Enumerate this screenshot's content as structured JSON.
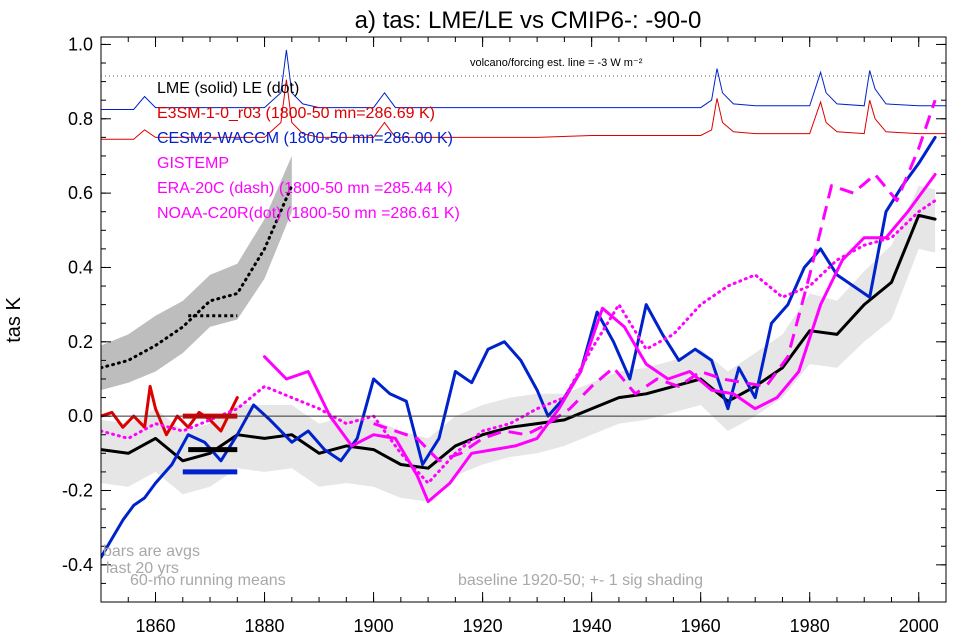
{
  "chart_data": {
    "type": "line",
    "title": "a) tas: LME/LE vs CMIP6-: -90-0",
    "ylabel": "tas K",
    "xlim": [
      1850,
      2005
    ],
    "ylim": [
      -0.5,
      1.02
    ],
    "x_ticks": [
      1860,
      1880,
      1900,
      1920,
      1940,
      1960,
      1980,
      2000
    ],
    "y_ticks": [
      -0.4,
      -0.2,
      0.0,
      0.2,
      0.4,
      0.6,
      0.8,
      1.0
    ],
    "y_tick_labels": [
      "-0.4",
      "-0.2",
      "0.0",
      "0.2",
      "0.4",
      "0.6",
      "0.8",
      "1.0"
    ],
    "zero_line": 0.0,
    "dotted_reference_y": 0.915,
    "dotted_reference_label": "volcano/forcing est.     line = -3 W m⁻²",
    "legend": {
      "placement": "top-left",
      "entries": [
        {
          "text": "LME (solid)   LE (dot)",
          "color": "#000000"
        },
        {
          "text": "E3SM-1-0_r03 (1800-50 mn=286.69 K)",
          "color": "#dd0000"
        },
        {
          "text": "CESM2-WACCM (1800-50 mn=286.00 K)",
          "color": "#0022cc"
        },
        {
          "text": "GISTEMP",
          "color": "#ff00ff"
        },
        {
          "text": "ERA-20C (dash) (1800-50 mn =285.44 K)",
          "color": "#ff00ff"
        },
        {
          "text": "NOAA-C20R(dot) (1800-50 mn =286.61 K)",
          "color": "#ff00ff"
        }
      ]
    },
    "notes": {
      "bars_line1": "bars are avgs",
      "bars_line2": "last 20 yrs",
      "running": "60-mo running means",
      "baseline": "baseline 1920-50; +- 1 sig shading"
    },
    "colors": {
      "lme": "#000000",
      "e3sm": "#dd0000",
      "cesm": "#0022cc",
      "obs": "#ff00ff",
      "shade_lme": "#e6e6e6",
      "shade_le": "#bdbdbd"
    },
    "series": [
      {
        "name": "LME (solid)",
        "style": "solid",
        "color": "#000000",
        "x": [
          1850,
          1855,
          1860,
          1865,
          1870,
          1875,
          1880,
          1885,
          1890,
          1895,
          1900,
          1905,
          1910,
          1915,
          1920,
          1925,
          1930,
          1935,
          1940,
          1945,
          1950,
          1955,
          1960,
          1965,
          1970,
          1975,
          1980,
          1985,
          1990,
          1995,
          2000,
          2003
        ],
        "y": [
          -0.09,
          -0.1,
          -0.06,
          -0.12,
          -0.1,
          -0.05,
          -0.06,
          -0.05,
          -0.1,
          -0.08,
          -0.09,
          -0.13,
          -0.14,
          -0.08,
          -0.05,
          -0.03,
          -0.02,
          -0.01,
          0.02,
          0.05,
          0.06,
          0.08,
          0.1,
          0.04,
          0.08,
          0.13,
          0.23,
          0.22,
          0.3,
          0.36,
          0.54,
          0.53
        ],
        "shade_lower": [
          -0.18,
          -0.19,
          -0.15,
          -0.21,
          -0.19,
          -0.14,
          -0.15,
          -0.14,
          -0.19,
          -0.18,
          -0.19,
          -0.22,
          -0.23,
          -0.16,
          -0.13,
          -0.11,
          -0.1,
          -0.08,
          -0.05,
          -0.02,
          -0.01,
          0.01,
          0.03,
          -0.04,
          0.0,
          0.05,
          0.14,
          0.13,
          0.2,
          0.26,
          0.45,
          0.44
        ],
        "shade_upper": [
          -0.01,
          -0.02,
          0.02,
          -0.04,
          -0.02,
          0.03,
          0.03,
          0.03,
          -0.02,
          0.0,
          -0.01,
          -0.04,
          -0.06,
          0.0,
          0.03,
          0.05,
          0.06,
          0.06,
          0.09,
          0.12,
          0.13,
          0.15,
          0.18,
          0.12,
          0.17,
          0.22,
          0.33,
          0.31,
          0.39,
          0.46,
          0.62,
          0.61
        ]
      },
      {
        "name": "LE (dot)",
        "style": "dot",
        "color": "#000000",
        "x": [
          1850,
          1855,
          1860,
          1865,
          1870,
          1875,
          1880,
          1885
        ],
        "y": [
          0.13,
          0.15,
          0.19,
          0.24,
          0.31,
          0.33,
          0.45,
          0.62
        ],
        "shade_lower": [
          0.07,
          0.09,
          0.12,
          0.17,
          0.24,
          0.26,
          0.37,
          0.55
        ],
        "shade_upper": [
          0.19,
          0.22,
          0.27,
          0.31,
          0.38,
          0.41,
          0.53,
          0.7
        ]
      },
      {
        "name": "E3SM-1-0_r03 (1800-50 mn=286.69 K)",
        "style": "solid",
        "color": "#dd0000",
        "x": [
          1850,
          1852,
          1854,
          1856,
          1858,
          1859,
          1860,
          1862,
          1864,
          1866,
          1868,
          1870,
          1872,
          1874,
          1875
        ],
        "y": [
          0.0,
          0.01,
          -0.03,
          0.0,
          -0.03,
          0.08,
          0.02,
          -0.05,
          0.0,
          -0.03,
          0.01,
          -0.01,
          -0.04,
          0.02,
          0.05
        ]
      },
      {
        "name": "CESM2-WACCM (1800-50 mn=286.00 K)",
        "style": "solid",
        "color": "#0022cc",
        "x": [
          1850,
          1852,
          1854,
          1856,
          1858,
          1860,
          1863,
          1866,
          1869,
          1872,
          1875,
          1878,
          1881,
          1885,
          1888,
          1891,
          1894,
          1897,
          1900,
          1903,
          1906,
          1909,
          1912,
          1915,
          1918,
          1921,
          1924,
          1927,
          1930,
          1932,
          1935,
          1938,
          1941,
          1944,
          1947,
          1950,
          1953,
          1956,
          1959,
          1962,
          1965,
          1967,
          1970,
          1973,
          1976,
          1979,
          1982,
          1985,
          1988,
          1991,
          1994,
          1997,
          2000,
          2003
        ],
        "y": [
          -0.38,
          -0.33,
          -0.28,
          -0.24,
          -0.22,
          -0.18,
          -0.13,
          -0.05,
          -0.07,
          -0.12,
          -0.05,
          0.03,
          -0.01,
          -0.07,
          -0.04,
          -0.09,
          -0.12,
          -0.06,
          0.1,
          0.06,
          0.04,
          -0.13,
          -0.06,
          0.12,
          0.09,
          0.18,
          0.2,
          0.15,
          0.07,
          0.0,
          0.05,
          0.12,
          0.28,
          0.2,
          0.1,
          0.3,
          0.22,
          0.15,
          0.18,
          0.15,
          0.02,
          0.13,
          0.05,
          0.25,
          0.3,
          0.4,
          0.45,
          0.38,
          0.35,
          0.32,
          0.55,
          0.62,
          0.68,
          0.75
        ]
      },
      {
        "name": "GISTEMP",
        "style": "solid",
        "color": "#ff00ff",
        "x": [
          1880,
          1884,
          1888,
          1892,
          1896,
          1900,
          1904,
          1908,
          1910,
          1914,
          1918,
          1922,
          1926,
          1930,
          1934,
          1938,
          1942,
          1946,
          1950,
          1954,
          1958,
          1962,
          1966,
          1970,
          1974,
          1978,
          1982,
          1986,
          1990,
          1994,
          1998,
          2003
        ],
        "y": [
          0.16,
          0.1,
          0.12,
          0.0,
          -0.08,
          -0.05,
          -0.06,
          -0.16,
          -0.23,
          -0.18,
          -0.1,
          -0.09,
          -0.08,
          -0.06,
          0.02,
          0.12,
          0.29,
          0.24,
          0.14,
          0.1,
          0.12,
          0.07,
          0.06,
          0.02,
          0.05,
          0.12,
          0.3,
          0.42,
          0.48,
          0.48,
          0.55,
          0.65
        ]
      },
      {
        "name": "ERA-20C (dash) (1800-50 mn =285.44 K)",
        "style": "dash",
        "color": "#ff00ff",
        "x": [
          1900,
          1904,
          1908,
          1912,
          1916,
          1920,
          1924,
          1928,
          1932,
          1936,
          1940,
          1944,
          1948,
          1952,
          1956,
          1960,
          1964,
          1968,
          1972,
          1976,
          1980,
          1984,
          1988,
          1992,
          1996,
          2000,
          2003
        ],
        "y": [
          -0.02,
          -0.04,
          -0.06,
          -0.12,
          -0.1,
          -0.06,
          -0.04,
          -0.05,
          -0.02,
          0.02,
          0.08,
          0.13,
          0.06,
          0.1,
          0.08,
          0.12,
          0.1,
          0.09,
          0.08,
          0.16,
          0.38,
          0.62,
          0.6,
          0.65,
          0.58,
          0.72,
          0.85
        ]
      },
      {
        "name": "NOAA-C20R(dot) (1800-50 mn =286.61 K)",
        "style": "dot",
        "color": "#ff00ff",
        "x": [
          1850,
          1855,
          1860,
          1865,
          1870,
          1875,
          1880,
          1885,
          1890,
          1895,
          1900,
          1905,
          1910,
          1915,
          1920,
          1925,
          1930,
          1935,
          1940,
          1945,
          1950,
          1955,
          1960,
          1965,
          1970,
          1975,
          1980,
          1985,
          1990,
          1995,
          2000,
          2003
        ],
        "y": [
          -0.04,
          -0.06,
          -0.02,
          -0.04,
          -0.01,
          0.02,
          0.08,
          0.05,
          0.02,
          -0.02,
          0.0,
          -0.1,
          -0.18,
          -0.1,
          -0.04,
          -0.02,
          0.02,
          0.05,
          0.18,
          0.3,
          0.18,
          0.22,
          0.3,
          0.35,
          0.38,
          0.32,
          0.35,
          0.42,
          0.46,
          0.48,
          0.55,
          0.58
        ]
      }
    ],
    "bars": [
      {
        "name": "E3SM-1-0_r03 (1800-50 mn=286.69 K)",
        "color": "#dd0000",
        "x_start": 1865,
        "x_end": 1875,
        "value": 0.0
      },
      {
        "name": "LME (solid)",
        "color": "#000000",
        "x_start": 1866,
        "x_end": 1875,
        "value": -0.09
      },
      {
        "name": "CESM2-WACCM (1800-50 mn=286.00 K)",
        "color": "#0022cc",
        "x_start": 1865,
        "x_end": 1875,
        "value": -0.15
      },
      {
        "name": "LE (dot)",
        "color": "#000000",
        "x_start": 1866,
        "x_end": 1875,
        "value": 0.27,
        "style": "dot"
      }
    ],
    "forcing_series": [
      {
        "name": "volcano/forcing est.",
        "color": "#0022cc",
        "x": [
          1850,
          1856,
          1858,
          1860,
          1870,
          1880,
          1883,
          1884,
          1885,
          1887,
          1890,
          1900,
          1902,
          1904,
          1910,
          1920,
          1930,
          1940,
          1950,
          1960,
          1962,
          1963,
          1964,
          1966,
          1970,
          1975,
          1980,
          1982,
          1983,
          1985,
          1990,
          1991,
          1992,
          1994,
          2000,
          2005
        ],
        "y": [
          0.825,
          0.825,
          0.86,
          0.83,
          0.83,
          0.83,
          0.87,
          0.985,
          0.87,
          0.84,
          0.83,
          0.83,
          0.87,
          0.83,
          0.83,
          0.83,
          0.83,
          0.83,
          0.83,
          0.83,
          0.85,
          0.935,
          0.87,
          0.84,
          0.835,
          0.835,
          0.835,
          0.925,
          0.87,
          0.84,
          0.835,
          0.93,
          0.88,
          0.84,
          0.835,
          0.835
        ]
      },
      {
        "name": "E3SM-1-0_r03 (1800-50 mn=286.69 K)",
        "color": "#dd0000",
        "x": [
          1850,
          1856,
          1858,
          1860,
          1870,
          1880,
          1883,
          1884,
          1885,
          1887,
          1890,
          1900,
          1902,
          1904,
          1910,
          1920,
          1930,
          1940,
          1950,
          1960,
          1962,
          1963,
          1964,
          1966,
          1970,
          1975,
          1980,
          1982,
          1983,
          1985,
          1990,
          1991,
          1992,
          1994,
          2000,
          2005
        ],
        "y": [
          0.745,
          0.745,
          0.77,
          0.75,
          0.75,
          0.75,
          0.79,
          0.905,
          0.79,
          0.76,
          0.75,
          0.75,
          0.79,
          0.75,
          0.75,
          0.75,
          0.75,
          0.755,
          0.755,
          0.755,
          0.77,
          0.855,
          0.79,
          0.765,
          0.76,
          0.76,
          0.76,
          0.845,
          0.79,
          0.765,
          0.76,
          0.85,
          0.8,
          0.765,
          0.76,
          0.76
        ]
      }
    ]
  }
}
